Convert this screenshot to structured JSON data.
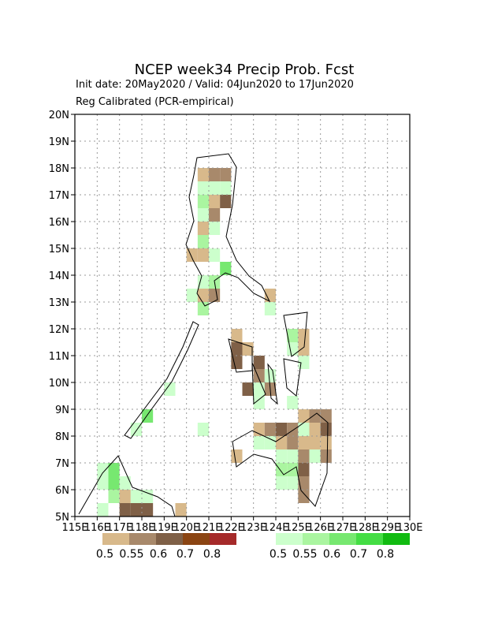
{
  "header": {
    "title": "NCEP week34 Precip Prob. Fcst",
    "init_line": "Init date: 20May2020 / Valid: 04Jun2020 to 17Jun2020",
    "method_line": "Reg Calibrated (PCR-empirical)"
  },
  "map": {
    "lonlim": [
      115,
      130
    ],
    "latlim": [
      5,
      20
    ],
    "lat_ticks": [
      {
        "value": 20,
        "label": "20N"
      },
      {
        "value": 19,
        "label": "19N"
      },
      {
        "value": 18,
        "label": "18N"
      },
      {
        "value": 17,
        "label": "17N"
      },
      {
        "value": 16,
        "label": "16N"
      },
      {
        "value": 15,
        "label": "15N"
      },
      {
        "value": 14,
        "label": "14N"
      },
      {
        "value": 13,
        "label": "13N"
      },
      {
        "value": 12,
        "label": "12N"
      },
      {
        "value": 11,
        "label": "11N"
      },
      {
        "value": 10,
        "label": "10N"
      },
      {
        "value": 9,
        "label": "9N"
      },
      {
        "value": 8,
        "label": "8N"
      },
      {
        "value": 7,
        "label": "7N"
      },
      {
        "value": 6,
        "label": "6N"
      },
      {
        "value": 5,
        "label": "5N"
      }
    ],
    "lon_ticks": [
      {
        "value": 115,
        "label": "115E"
      },
      {
        "value": 116,
        "label": "116E"
      },
      {
        "value": 117,
        "label": "117E"
      },
      {
        "value": 118,
        "label": "118E"
      },
      {
        "value": 119,
        "label": "119E"
      },
      {
        "value": 120,
        "label": "120E"
      },
      {
        "value": 121,
        "label": "121E"
      },
      {
        "value": 122,
        "label": "122E"
      },
      {
        "value": 123,
        "label": "123E"
      },
      {
        "value": 124,
        "label": "124E"
      },
      {
        "value": 125,
        "label": "125E"
      },
      {
        "value": 126,
        "label": "126E"
      },
      {
        "value": 127,
        "label": "127E"
      },
      {
        "value": 128,
        "label": "128E"
      },
      {
        "value": 129,
        "label": "129E"
      },
      {
        "value": 130,
        "label": "130E"
      }
    ]
  },
  "legend_dry": {
    "colors": [
      "#d8b98b",
      "#a8896b",
      "#7f6047",
      "#8b4513",
      "#a52a2a"
    ],
    "labels": [
      "0.5",
      "0.55",
      "0.6",
      "0.7",
      "0.8"
    ]
  },
  "legend_wet": {
    "colors": [
      "#ccffcc",
      "#aaf5a0",
      "#77e870",
      "#44dd44",
      "#11bb11"
    ],
    "labels": [
      "0.5",
      "0.55",
      "0.6",
      "0.7",
      "0.8"
    ]
  }
}
